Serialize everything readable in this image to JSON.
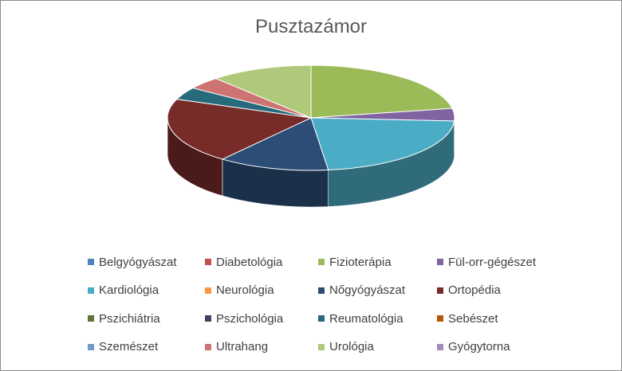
{
  "chart_data": {
    "type": "pie",
    "title": "Pusztazámor",
    "legend_position": "bottom",
    "categories": [
      "Belgyógyászat",
      "Diabetológia",
      "Fizioterápia",
      "Fül-orr-gégészet",
      "Kardiológia",
      "Neurológia",
      "Nőgyógyászat",
      "Ortopédia",
      "Pszichiátria",
      "Pszichológia",
      "Reumatológia",
      "Sebészet",
      "Szemészet",
      "Ultrahang",
      "Urológia",
      "Gyógytorna"
    ],
    "colors": [
      "#4F81BD",
      "#C0504D",
      "#9BBB59",
      "#8064A2",
      "#4BACC6",
      "#F79646",
      "#2C4D75",
      "#772C2A",
      "#5F7530",
      "#4D3B62",
      "#276A7C",
      "#B65708",
      "#729ACA",
      "#CD7371",
      "#AFC97A",
      "#A08CBF"
    ],
    "values": [
      0,
      0,
      23,
      4,
      23,
      0,
      13,
      21,
      0,
      0,
      4,
      0,
      0,
      4,
      12,
      0
    ]
  }
}
